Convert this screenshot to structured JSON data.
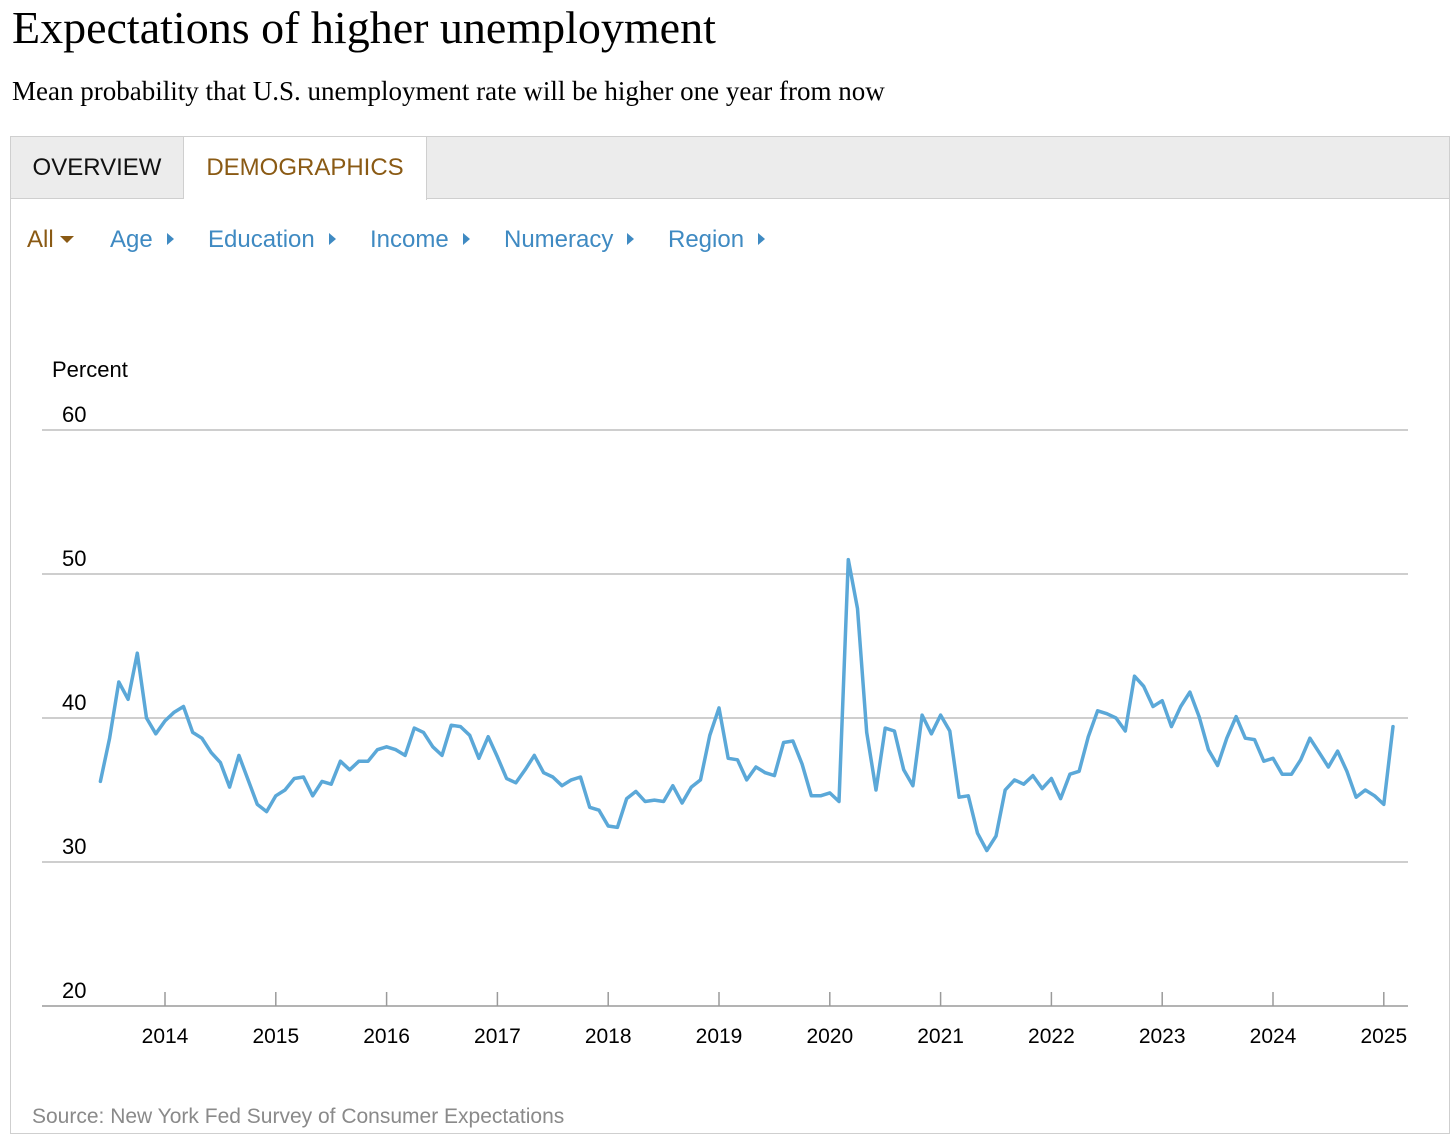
{
  "header": {
    "title": "Expectations of higher unemployment",
    "subtitle": "Mean probability that U.S. unemployment rate will be higher one year from now"
  },
  "tabs": [
    {
      "label": "OVERVIEW",
      "active": false
    },
    {
      "label": "DEMOGRAPHICS",
      "active": true
    }
  ],
  "filters": [
    {
      "label": "All",
      "icon": "caret-down-icon",
      "active": true
    },
    {
      "label": "Age",
      "icon": "caret-right-icon"
    },
    {
      "label": "Education",
      "icon": "caret-right-icon"
    },
    {
      "label": "Income",
      "icon": "caret-right-icon"
    },
    {
      "label": "Numeracy",
      "icon": "caret-right-icon"
    },
    {
      "label": "Region",
      "icon": "caret-right-icon"
    }
  ],
  "colors": {
    "accent": "#8a5a14",
    "link": "#3f8ac2",
    "line": "#5ba8d8",
    "grid": "#bdbdbd"
  },
  "source": "Source: New York Fed Survey of Consumer Expectations",
  "chart_data": {
    "type": "line",
    "title": "Expectations of higher unemployment",
    "ylabel": "Percent",
    "xlabel": "",
    "ylim": [
      20,
      60
    ],
    "y_ticks": [
      "60",
      "50",
      "40",
      "30",
      "20"
    ],
    "x_ticks": [
      "2014",
      "2015",
      "2016",
      "2017",
      "2018",
      "2019",
      "2020",
      "2021",
      "2022",
      "2023",
      "2024",
      "2025"
    ],
    "grid": true,
    "series": [
      {
        "values": [
          {
            "x": "2013-06",
            "y": 35.6
          },
          {
            "x": "2013-07",
            "y": 38.6
          },
          {
            "x": "2013-08",
            "y": 42.5
          },
          {
            "x": "2013-09",
            "y": 41.3
          },
          {
            "x": "2013-10",
            "y": 44.5
          },
          {
            "x": "2013-11",
            "y": 40.0
          },
          {
            "x": "2013-12",
            "y": 38.9
          },
          {
            "x": "2014-01",
            "y": 39.8
          },
          {
            "x": "2014-02",
            "y": 40.4
          },
          {
            "x": "2014-03",
            "y": 40.8
          },
          {
            "x": "2014-04",
            "y": 39.0
          },
          {
            "x": "2014-05",
            "y": 38.6
          },
          {
            "x": "2014-06",
            "y": 37.6
          },
          {
            "x": "2014-07",
            "y": 36.9
          },
          {
            "x": "2014-08",
            "y": 35.2
          },
          {
            "x": "2014-09",
            "y": 37.4
          },
          {
            "x": "2014-10",
            "y": 35.7
          },
          {
            "x": "2014-11",
            "y": 34.0
          },
          {
            "x": "2014-12",
            "y": 33.5
          },
          {
            "x": "2015-01",
            "y": 34.6
          },
          {
            "x": "2015-02",
            "y": 35.0
          },
          {
            "x": "2015-03",
            "y": 35.8
          },
          {
            "x": "2015-04",
            "y": 35.9
          },
          {
            "x": "2015-05",
            "y": 34.6
          },
          {
            "x": "2015-06",
            "y": 35.6
          },
          {
            "x": "2015-07",
            "y": 35.4
          },
          {
            "x": "2015-08",
            "y": 37.0
          },
          {
            "x": "2015-09",
            "y": 36.4
          },
          {
            "x": "2015-10",
            "y": 37.0
          },
          {
            "x": "2015-11",
            "y": 37.0
          },
          {
            "x": "2015-12",
            "y": 37.8
          },
          {
            "x": "2016-01",
            "y": 38.0
          },
          {
            "x": "2016-02",
            "y": 37.8
          },
          {
            "x": "2016-03",
            "y": 37.4
          },
          {
            "x": "2016-04",
            "y": 39.3
          },
          {
            "x": "2016-05",
            "y": 39.0
          },
          {
            "x": "2016-06",
            "y": 38.0
          },
          {
            "x": "2016-07",
            "y": 37.4
          },
          {
            "x": "2016-08",
            "y": 39.5
          },
          {
            "x": "2016-09",
            "y": 39.4
          },
          {
            "x": "2016-10",
            "y": 38.8
          },
          {
            "x": "2016-11",
            "y": 37.2
          },
          {
            "x": "2016-12",
            "y": 38.7
          },
          {
            "x": "2017-01",
            "y": 37.3
          },
          {
            "x": "2017-02",
            "y": 35.8
          },
          {
            "x": "2017-03",
            "y": 35.5
          },
          {
            "x": "2017-04",
            "y": 36.4
          },
          {
            "x": "2017-05",
            "y": 37.4
          },
          {
            "x": "2017-06",
            "y": 36.2
          },
          {
            "x": "2017-07",
            "y": 35.9
          },
          {
            "x": "2017-08",
            "y": 35.3
          },
          {
            "x": "2017-09",
            "y": 35.7
          },
          {
            "x": "2017-10",
            "y": 35.9
          },
          {
            "x": "2017-11",
            "y": 33.8
          },
          {
            "x": "2017-12",
            "y": 33.6
          },
          {
            "x": "2018-01",
            "y": 32.5
          },
          {
            "x": "2018-02",
            "y": 32.4
          },
          {
            "x": "2018-03",
            "y": 34.4
          },
          {
            "x": "2018-04",
            "y": 34.9
          },
          {
            "x": "2018-05",
            "y": 34.2
          },
          {
            "x": "2018-06",
            "y": 34.3
          },
          {
            "x": "2018-07",
            "y": 34.2
          },
          {
            "x": "2018-08",
            "y": 35.3
          },
          {
            "x": "2018-09",
            "y": 34.1
          },
          {
            "x": "2018-10",
            "y": 35.2
          },
          {
            "x": "2018-11",
            "y": 35.7
          },
          {
            "x": "2018-12",
            "y": 38.8
          },
          {
            "x": "2019-01",
            "y": 40.7
          },
          {
            "x": "2019-02",
            "y": 37.2
          },
          {
            "x": "2019-03",
            "y": 37.1
          },
          {
            "x": "2019-04",
            "y": 35.7
          },
          {
            "x": "2019-05",
            "y": 36.6
          },
          {
            "x": "2019-06",
            "y": 36.2
          },
          {
            "x": "2019-07",
            "y": 36.0
          },
          {
            "x": "2019-08",
            "y": 38.3
          },
          {
            "x": "2019-09",
            "y": 38.4
          },
          {
            "x": "2019-10",
            "y": 36.8
          },
          {
            "x": "2019-11",
            "y": 34.6
          },
          {
            "x": "2019-12",
            "y": 34.6
          },
          {
            "x": "2020-01",
            "y": 34.8
          },
          {
            "x": "2020-02",
            "y": 34.2
          },
          {
            "x": "2020-03",
            "y": 51.0
          },
          {
            "x": "2020-04",
            "y": 47.6
          },
          {
            "x": "2020-05",
            "y": 39.0
          },
          {
            "x": "2020-06",
            "y": 35.0
          },
          {
            "x": "2020-07",
            "y": 39.3
          },
          {
            "x": "2020-08",
            "y": 39.1
          },
          {
            "x": "2020-09",
            "y": 36.4
          },
          {
            "x": "2020-10",
            "y": 35.3
          },
          {
            "x": "2020-11",
            "y": 40.2
          },
          {
            "x": "2020-12",
            "y": 38.9
          },
          {
            "x": "2021-01",
            "y": 40.2
          },
          {
            "x": "2021-02",
            "y": 39.1
          },
          {
            "x": "2021-03",
            "y": 34.5
          },
          {
            "x": "2021-04",
            "y": 34.6
          },
          {
            "x": "2021-05",
            "y": 32.0
          },
          {
            "x": "2021-06",
            "y": 30.8
          },
          {
            "x": "2021-07",
            "y": 31.8
          },
          {
            "x": "2021-08",
            "y": 35.0
          },
          {
            "x": "2021-09",
            "y": 35.7
          },
          {
            "x": "2021-10",
            "y": 35.4
          },
          {
            "x": "2021-11",
            "y": 36.0
          },
          {
            "x": "2021-12",
            "y": 35.1
          },
          {
            "x": "2022-01",
            "y": 35.8
          },
          {
            "x": "2022-02",
            "y": 34.4
          },
          {
            "x": "2022-03",
            "y": 36.1
          },
          {
            "x": "2022-04",
            "y": 36.3
          },
          {
            "x": "2022-05",
            "y": 38.7
          },
          {
            "x": "2022-06",
            "y": 40.5
          },
          {
            "x": "2022-07",
            "y": 40.3
          },
          {
            "x": "2022-08",
            "y": 40.0
          },
          {
            "x": "2022-09",
            "y": 39.1
          },
          {
            "x": "2022-10",
            "y": 42.9
          },
          {
            "x": "2022-11",
            "y": 42.2
          },
          {
            "x": "2022-12",
            "y": 40.8
          },
          {
            "x": "2023-01",
            "y": 41.2
          },
          {
            "x": "2023-02",
            "y": 39.4
          },
          {
            "x": "2023-03",
            "y": 40.8
          },
          {
            "x": "2023-04",
            "y": 41.8
          },
          {
            "x": "2023-05",
            "y": 40.1
          },
          {
            "x": "2023-06",
            "y": 37.8
          },
          {
            "x": "2023-07",
            "y": 36.7
          },
          {
            "x": "2023-08",
            "y": 38.6
          },
          {
            "x": "2023-09",
            "y": 40.1
          },
          {
            "x": "2023-10",
            "y": 38.6
          },
          {
            "x": "2023-11",
            "y": 38.5
          },
          {
            "x": "2023-12",
            "y": 37.0
          },
          {
            "x": "2024-01",
            "y": 37.2
          },
          {
            "x": "2024-02",
            "y": 36.1
          },
          {
            "x": "2024-03",
            "y": 36.1
          },
          {
            "x": "2024-04",
            "y": 37.1
          },
          {
            "x": "2024-05",
            "y": 38.6
          },
          {
            "x": "2024-06",
            "y": 37.6
          },
          {
            "x": "2024-07",
            "y": 36.6
          },
          {
            "x": "2024-08",
            "y": 37.7
          },
          {
            "x": "2024-09",
            "y": 36.3
          },
          {
            "x": "2024-10",
            "y": 34.5
          },
          {
            "x": "2024-11",
            "y": 35.0
          },
          {
            "x": "2024-12",
            "y": 34.6
          },
          {
            "x": "2025-01",
            "y": 34.0
          },
          {
            "x": "2025-02",
            "y": 39.4
          }
        ]
      }
    ]
  }
}
